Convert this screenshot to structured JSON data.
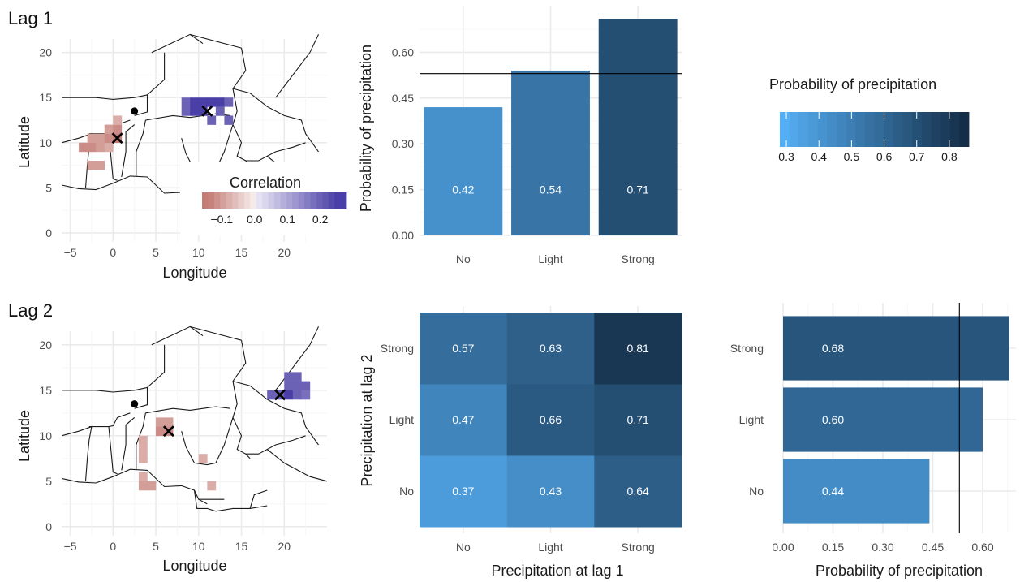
{
  "lag1_title": "Lag 1",
  "lag2_title": "Lag 2",
  "map_xlabel": "Longitude",
  "map_ylabel": "Latitude",
  "map_xticks": [
    "−5",
    "0",
    "5",
    "10",
    "15",
    "20"
  ],
  "map_yticks": [
    "0",
    "5",
    "10",
    "15",
    "20"
  ],
  "corr_legend": {
    "title": "Correlation",
    "ticks": [
      "−0.1",
      "0.0",
      "0.1",
      "0.2"
    ],
    "neg_color": "#c47c76",
    "pos_color": "#4a3fa6"
  },
  "prob_legend": {
    "title": "Probability of precipitation",
    "ticks": [
      "0.3",
      "0.4",
      "0.5",
      "0.6",
      "0.7",
      "0.8"
    ],
    "low_color": "#56b1f7",
    "high_color": "#132b43"
  },
  "chart_data": [
    {
      "type": "bar",
      "panel": "lag1-bars",
      "categories": [
        "No",
        "Light",
        "Strong"
      ],
      "values": [
        0.42,
        0.54,
        0.71
      ],
      "value_labels": [
        "0.42",
        "0.54",
        "0.71"
      ],
      "ylabel": "Probability of precipitation",
      "yticks": [
        "0.00",
        "0.15",
        "0.30",
        "0.45",
        "0.60"
      ],
      "ylim": [
        0,
        0.75
      ],
      "reference_line": 0.53,
      "grid": true
    },
    {
      "type": "heatmap",
      "panel": "lag2-heatmap",
      "x_categories": [
        "No",
        "Light",
        "Strong"
      ],
      "y_categories": [
        "No",
        "Light",
        "Strong"
      ],
      "values": [
        [
          0.37,
          0.43,
          0.64
        ],
        [
          0.47,
          0.66,
          0.71
        ],
        [
          0.57,
          0.63,
          0.81
        ]
      ],
      "value_labels": [
        [
          "0.37",
          "0.43",
          "0.64"
        ],
        [
          "0.47",
          "0.66",
          "0.71"
        ],
        [
          "0.57",
          "0.63",
          "0.81"
        ]
      ],
      "xlabel": "Precipitation at lag 1",
      "ylabel": "Precipitation at lag 2"
    },
    {
      "type": "bar",
      "orientation": "horizontal",
      "panel": "lag2-bars",
      "categories": [
        "No",
        "Light",
        "Strong"
      ],
      "values": [
        0.44,
        0.6,
        0.68
      ],
      "value_labels": [
        "0.44",
        "0.60",
        "0.68"
      ],
      "xlabel": "Probability of precipitation",
      "xticks": [
        "0.00",
        "0.15",
        "0.30",
        "0.45",
        "0.60"
      ],
      "xlim": [
        0,
        0.7
      ],
      "reference_line": 0.53,
      "grid": true
    }
  ],
  "map_lag1": {
    "neg_cells": [
      [
        -4,
        9,
        -0.12
      ],
      [
        -3,
        9,
        -0.12
      ],
      [
        -2,
        9,
        -0.1
      ],
      [
        -1,
        9,
        -0.08
      ],
      [
        -3,
        10,
        -0.1
      ],
      [
        -2,
        10,
        -0.1
      ],
      [
        -1,
        10,
        -0.12
      ],
      [
        0,
        10,
        -0.14
      ],
      [
        -1,
        11,
        -0.1
      ],
      [
        0,
        11,
        -0.12
      ],
      [
        0,
        12,
        -0.08
      ],
      [
        -3,
        7,
        -0.1
      ],
      [
        -2,
        7,
        -0.1
      ]
    ],
    "pos_cells": [
      [
        8,
        14,
        0.2
      ],
      [
        9,
        14,
        0.25
      ],
      [
        10,
        14,
        0.25
      ],
      [
        11,
        14,
        0.25
      ],
      [
        12,
        14,
        0.25
      ],
      [
        13,
        14,
        0.2
      ],
      [
        8,
        13,
        0.2
      ],
      [
        9,
        13,
        0.25
      ],
      [
        10,
        13,
        0.25
      ],
      [
        12,
        13,
        0.2
      ],
      [
        11,
        12,
        0.2
      ],
      [
        13,
        12,
        0.2
      ]
    ],
    "markers": [
      {
        "kind": "x",
        "lon": 0.5,
        "lat": 10.5
      },
      {
        "kind": "x",
        "lon": 11,
        "lat": 13.5
      },
      {
        "kind": "dot",
        "lon": 2.5,
        "lat": 13.5
      }
    ]
  },
  "map_lag2": {
    "neg_cells": [
      [
        5,
        11,
        -0.1
      ],
      [
        6,
        11,
        -0.1
      ],
      [
        5,
        10,
        -0.12
      ],
      [
        6,
        10,
        -0.12
      ],
      [
        3,
        9,
        -0.08
      ],
      [
        3,
        8,
        -0.08
      ],
      [
        10,
        7,
        -0.08
      ],
      [
        3,
        7,
        -0.08
      ],
      [
        3,
        5,
        -0.08
      ],
      [
        3,
        4,
        -0.1
      ],
      [
        4,
        4,
        -0.1
      ],
      [
        11,
        4,
        -0.08
      ]
    ],
    "pos_cells": [
      [
        20,
        16,
        0.2
      ],
      [
        21,
        16,
        0.2
      ],
      [
        20,
        15,
        0.2
      ],
      [
        21,
        15,
        0.2
      ],
      [
        22,
        15,
        0.2
      ],
      [
        18,
        14,
        0.2
      ],
      [
        19,
        14,
        0.2
      ],
      [
        20,
        14,
        0.25
      ],
      [
        21,
        14,
        0.2
      ],
      [
        22,
        14,
        0.18
      ]
    ],
    "markers": [
      {
        "kind": "x",
        "lon": 6.5,
        "lat": 10.5
      },
      {
        "kind": "x",
        "lon": 19.5,
        "lat": 14.5
      },
      {
        "kind": "dot",
        "lon": 2.5,
        "lat": 13.5
      }
    ]
  }
}
